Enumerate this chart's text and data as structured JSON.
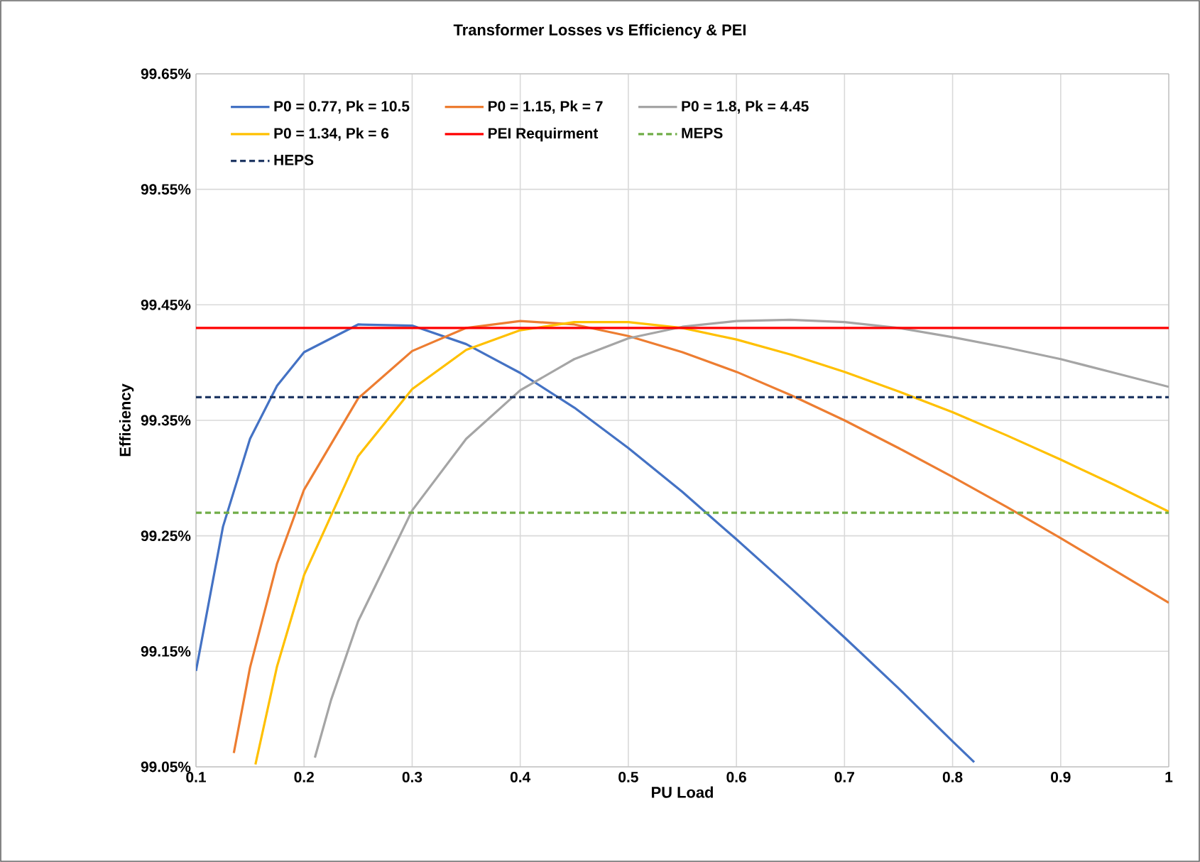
{
  "chart_data": {
    "type": "line",
    "title": "Transformer Losses vs Efficiency & PEI",
    "xlabel": "PU Load",
    "ylabel": "Efficiency",
    "xlim": [
      0.1,
      1
    ],
    "xticks": [
      0.1,
      0.2,
      0.3,
      0.4,
      0.5,
      0.6,
      0.7,
      0.8,
      0.9,
      1
    ],
    "ylim": [
      99.05,
      99.65
    ],
    "yticks": [
      {
        "value": 99.05,
        "label": "99.05%"
      },
      {
        "value": 99.15,
        "label": "99.15%"
      },
      {
        "value": 99.25,
        "label": "99.25%"
      },
      {
        "value": 99.35,
        "label": "99.35%"
      },
      {
        "value": 99.45,
        "label": "99.45%"
      },
      {
        "value": 99.55,
        "label": "99.55%"
      },
      {
        "value": 99.65,
        "label": "99.65%"
      }
    ],
    "grid": true,
    "legend": "top",
    "marker": "none",
    "series": [
      {
        "name": "P0 = 0.77, Pk = 10.5",
        "color": "#4472c4",
        "line_style": "solid",
        "x": [
          0.1,
          0.125,
          0.15,
          0.175,
          0.2,
          0.25,
          0.3,
          0.35,
          0.4,
          0.45,
          0.5,
          0.55,
          0.6,
          0.65,
          0.7,
          0.75,
          0.8,
          0.82
        ],
        "values": [
          99.133,
          99.258,
          99.334,
          99.38,
          99.409,
          99.433,
          99.432,
          99.416,
          99.391,
          99.361,
          99.326,
          99.288,
          99.247,
          99.205,
          99.162,
          99.118,
          99.072,
          99.054
        ]
      },
      {
        "name": "P0 = 1.15, Pk = 7",
        "color": "#ed7d31",
        "line_style": "solid",
        "x": [
          0.135,
          0.15,
          0.175,
          0.2,
          0.25,
          0.3,
          0.35,
          0.4,
          0.45,
          0.5,
          0.55,
          0.6,
          0.65,
          0.7,
          0.75,
          0.8,
          0.85,
          0.9,
          0.95,
          1
        ],
        "values": [
          99.062,
          99.136,
          99.226,
          99.29,
          99.369,
          99.41,
          99.43,
          99.436,
          99.433,
          99.423,
          99.409,
          99.392,
          99.372,
          99.35,
          99.326,
          99.301,
          99.275,
          99.248,
          99.22,
          99.192
        ]
      },
      {
        "name": "P0 = 1.8, Pk = 4.45",
        "color": "#a5a5a5",
        "line_style": "solid",
        "x": [
          0.21,
          0.225,
          0.25,
          0.3,
          0.35,
          0.4,
          0.45,
          0.5,
          0.55,
          0.6,
          0.65,
          0.7,
          0.75,
          0.8,
          0.85,
          0.9,
          0.95,
          1
        ],
        "values": [
          99.058,
          99.108,
          99.176,
          99.272,
          99.334,
          99.376,
          99.403,
          99.421,
          99.431,
          99.436,
          99.437,
          99.435,
          99.43,
          99.422,
          99.413,
          99.403,
          99.391,
          99.379
        ]
      },
      {
        "name": "P0 = 1.34, Pk = 6",
        "color": "#ffc000",
        "line_style": "solid",
        "x": [
          0.155,
          0.175,
          0.2,
          0.25,
          0.3,
          0.35,
          0.4,
          0.45,
          0.5,
          0.55,
          0.6,
          0.65,
          0.7,
          0.75,
          0.8,
          0.85,
          0.9,
          0.95,
          1
        ],
        "values": [
          99.052,
          99.137,
          99.216,
          99.319,
          99.377,
          99.411,
          99.428,
          99.435,
          99.435,
          99.43,
          99.42,
          99.407,
          99.392,
          99.375,
          99.357,
          99.337,
          99.316,
          99.294,
          99.271
        ]
      },
      {
        "name": "PEI Requirment",
        "color": "#ff0000",
        "line_style": "solid",
        "x": [
          0.1,
          1
        ],
        "values": [
          99.43,
          99.43
        ]
      },
      {
        "name": "MEPS",
        "color": "#70ad47",
        "line_style": "dashed",
        "x": [
          0.1,
          1
        ],
        "values": [
          99.27,
          99.27
        ]
      },
      {
        "name": "HEPS",
        "color": "#203864",
        "line_style": "dashed",
        "x": [
          0.1,
          1
        ],
        "values": [
          99.37,
          99.37
        ]
      }
    ]
  }
}
